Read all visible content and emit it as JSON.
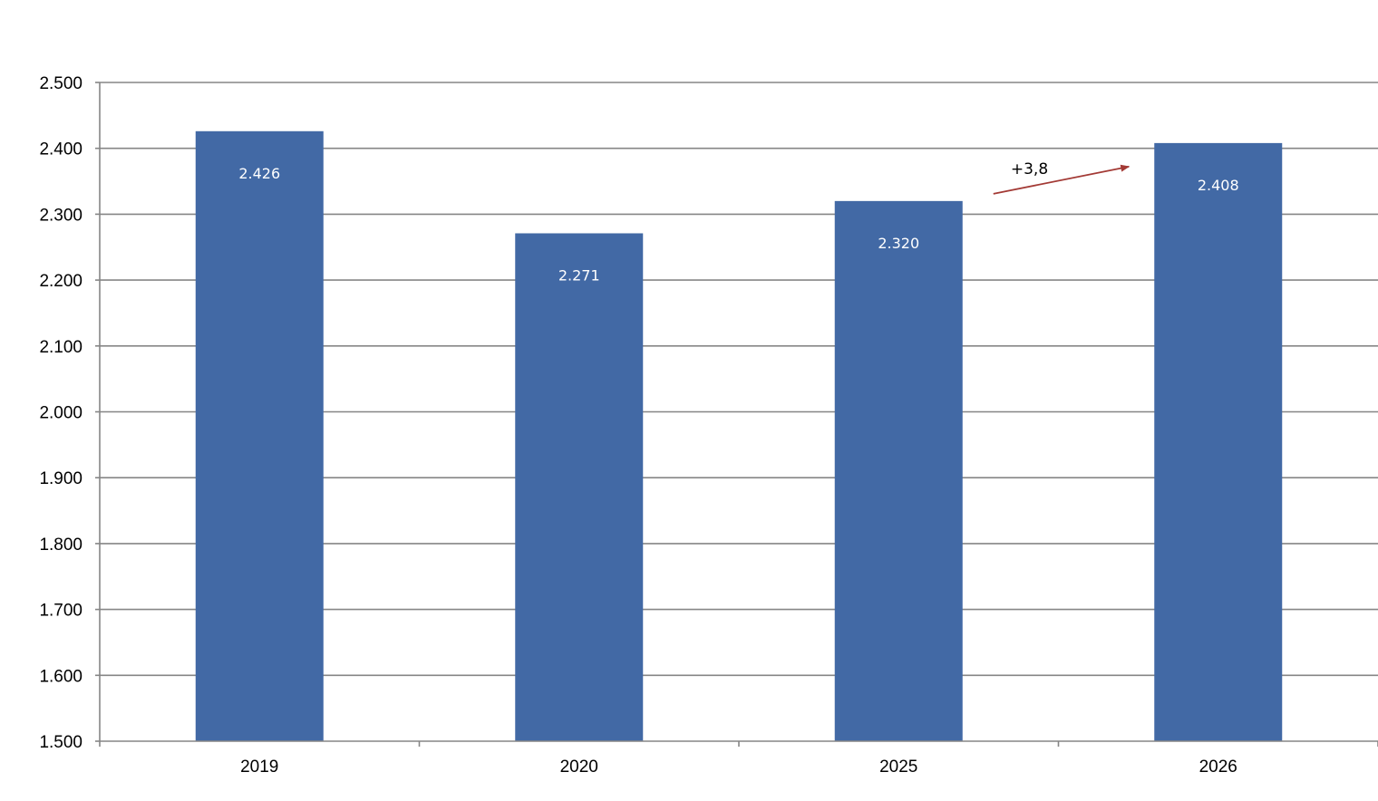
{
  "chart_data": {
    "type": "bar",
    "categories": [
      "2019",
      "2020",
      "2025",
      "2026"
    ],
    "values": [
      2426,
      2271,
      2320,
      2408
    ],
    "data_labels": [
      "2.426",
      "2.271",
      "2.320",
      "2.408"
    ],
    "y_ticks": [
      1500,
      1600,
      1700,
      1800,
      1900,
      2000,
      2100,
      2200,
      2300,
      2400,
      2500
    ],
    "y_tick_labels": [
      "1.500",
      "1.600",
      "1.700",
      "1.800",
      "1.900",
      "2.000",
      "2.100",
      "2.200",
      "2.300",
      "2.400",
      "2.500"
    ],
    "ylim": [
      1500,
      2500
    ],
    "grid": true,
    "title": "",
    "xlabel": "",
    "ylabel": "",
    "bar_color": "#4269A5",
    "annotation": {
      "text": "+3,8",
      "from_category": "2025",
      "to_category": "2026",
      "arrow_color": "#A33A35"
    }
  }
}
